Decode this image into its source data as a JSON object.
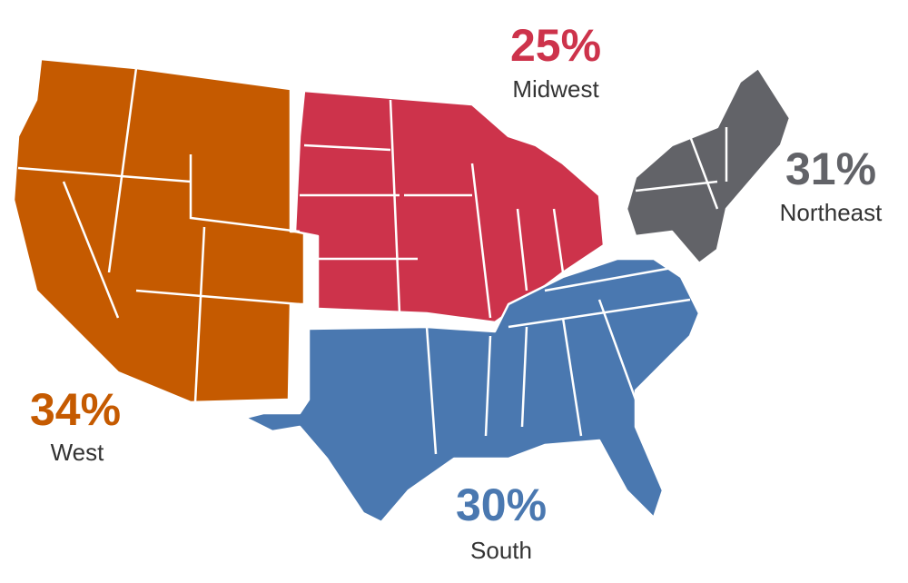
{
  "regions": [
    {
      "name": "West",
      "share": "34%",
      "color": "#c55a00"
    },
    {
      "name": "Midwest",
      "share": "25%",
      "color": "#cd334b"
    },
    {
      "name": "Northeast",
      "share": "31%",
      "color": "#626368"
    },
    {
      "name": "South",
      "share": "30%",
      "color": "#4a78b0"
    }
  ]
}
